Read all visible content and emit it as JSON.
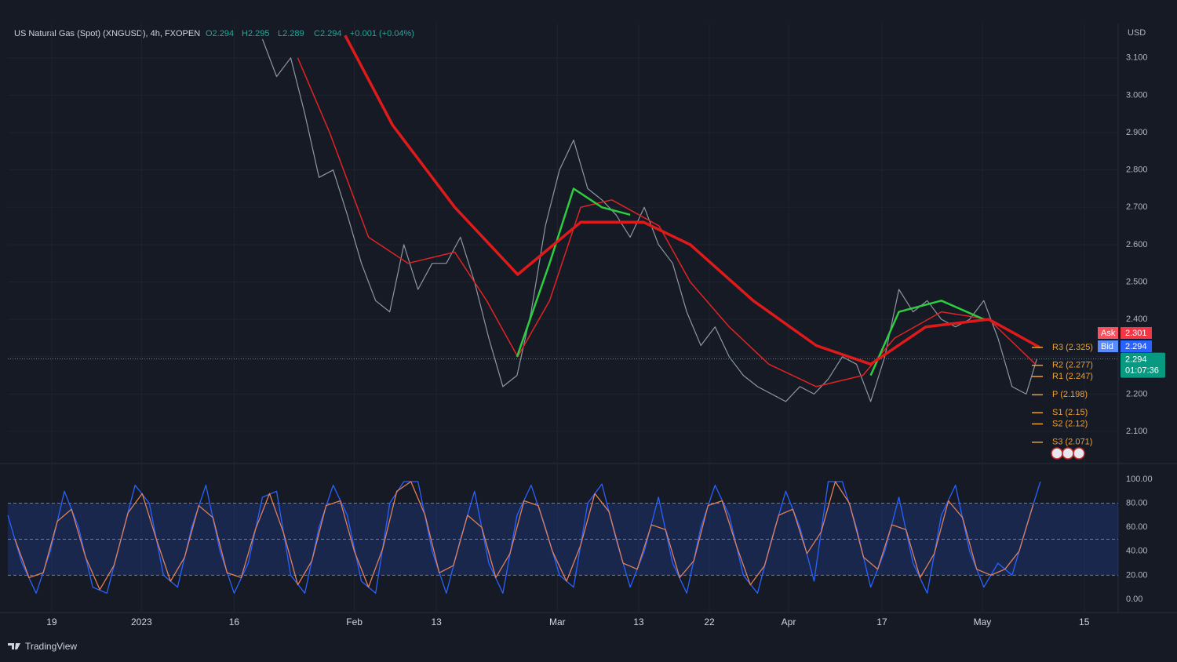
{
  "chart_data": [
    {
      "type": "line",
      "title": "US Natural Gas (Spot) (XNGUSD), 4h, FXOPEN",
      "ohlc": [
        "O2.294",
        "H2.295",
        "L2.289",
        "C2.294"
      ],
      "change": "+0.001 (+0.04%)",
      "currency": "USD",
      "xlim": [
        0,
        157
      ],
      "xticks": [
        {
          "value": 6.2,
          "label": "19"
        },
        {
          "value": 18.9,
          "label": "2023"
        },
        {
          "value": 32.0,
          "label": "16"
        },
        {
          "value": 49.0,
          "label": "Feb"
        },
        {
          "value": 60.6,
          "label": "13"
        },
        {
          "value": 77.7,
          "label": "Mar"
        },
        {
          "value": 89.2,
          "label": "13"
        },
        {
          "value": 99.2,
          "label": "22"
        },
        {
          "value": 110.4,
          "label": "Apr"
        },
        {
          "value": 123.6,
          "label": "17"
        },
        {
          "value": 137.8,
          "label": "May"
        },
        {
          "value": 152.2,
          "label": "15"
        }
      ],
      "ylim": [
        2.016,
        3.192
      ],
      "yticks": [
        {
          "value": 2.1,
          "label": "2.100"
        },
        {
          "value": 2.2,
          "label": "2.200"
        },
        {
          "value": 2.3,
          "label": "2.300"
        },
        {
          "value": 2.4,
          "label": "2.400"
        },
        {
          "value": 2.5,
          "label": "2.500"
        },
        {
          "value": 2.6,
          "label": "2.600"
        },
        {
          "value": 2.7,
          "label": "2.700"
        },
        {
          "value": 2.8,
          "label": "2.800"
        },
        {
          "value": 2.9,
          "label": "2.900"
        },
        {
          "value": 3.0,
          "label": "3.000"
        },
        {
          "value": 3.1,
          "label": "3.100"
        }
      ],
      "grid": true,
      "series": [
        {
          "color": "#8f96a3",
          "width": 1.2,
          "x": [
            36,
            38,
            40,
            42,
            44,
            46,
            48,
            50,
            52,
            54,
            56,
            58,
            60,
            62,
            64,
            66,
            68,
            70,
            72,
            74,
            76,
            78,
            80,
            82,
            84,
            86,
            88,
            90,
            92,
            94,
            96,
            98,
            100,
            102,
            104,
            106,
            108,
            110,
            112,
            114,
            116,
            118,
            120,
            122,
            124,
            126,
            128,
            130,
            132,
            134,
            136,
            138,
            140,
            142,
            144,
            145.5
          ],
          "values": [
            3.15,
            3.05,
            3.1,
            2.95,
            2.78,
            2.8,
            2.68,
            2.55,
            2.45,
            2.42,
            2.6,
            2.48,
            2.55,
            2.55,
            2.62,
            2.5,
            2.35,
            2.22,
            2.25,
            2.42,
            2.65,
            2.8,
            2.88,
            2.75,
            2.72,
            2.68,
            2.62,
            2.7,
            2.6,
            2.55,
            2.42,
            2.33,
            2.38,
            2.3,
            2.25,
            2.22,
            2.2,
            2.18,
            2.22,
            2.2,
            2.24,
            2.3,
            2.28,
            2.18,
            2.3,
            2.48,
            2.42,
            2.45,
            2.4,
            2.38,
            2.4,
            2.45,
            2.35,
            2.22,
            2.2,
            2.294
          ]
        },
        {
          "color": "#e02424",
          "width": 1.5,
          "x": [
            41,
            45.5,
            51,
            56.6,
            63.2,
            67.7,
            72.1,
            76.6,
            81,
            85.4,
            92.1,
            96.5,
            102,
            107.6,
            114.3,
            120.9,
            125.4,
            132,
            138.7,
            145.3
          ],
          "values": [
            3.1,
            2.9,
            2.62,
            2.55,
            2.58,
            2.45,
            2.3,
            2.45,
            2.7,
            2.72,
            2.65,
            2.5,
            2.38,
            2.28,
            2.22,
            2.25,
            2.35,
            2.42,
            2.4,
            2.28
          ]
        },
        {
          "color": "#2ecc40",
          "width": 2.5,
          "x": [
            72,
            76.6,
            80,
            84,
            88
          ],
          "values": [
            2.3,
            2.55,
            2.75,
            2.7,
            2.68
          ]
        },
        {
          "color": "#2ecc40",
          "width": 2.5,
          "x": [
            122,
            126,
            132,
            138
          ],
          "values": [
            2.25,
            2.42,
            2.45,
            2.4
          ]
        },
        {
          "color": "#e01a1a",
          "width": 3.5,
          "x": [
            47.7,
            54.4,
            63.2,
            72.1,
            81,
            89.9,
            96.5,
            105.4,
            114.3,
            122,
            129.8,
            138.7,
            145.9
          ],
          "values": [
            3.16,
            2.92,
            2.7,
            2.52,
            2.66,
            2.66,
            2.6,
            2.45,
            2.33,
            2.28,
            2.38,
            2.4,
            2.325
          ]
        }
      ],
      "pivots": [
        {
          "label": "R3 (2.325)",
          "value": 2.325
        },
        {
          "label": "R2 (2.277)",
          "value": 2.277
        },
        {
          "label": "R1 (2.247)",
          "value": 2.247
        },
        {
          "label": "P (2.198)",
          "value": 2.198
        },
        {
          "label": "S1 (2.15)",
          "value": 2.15
        },
        {
          "label": "S2 (2.12)",
          "value": 2.12
        },
        {
          "label": "S3 (2.071)",
          "value": 2.071
        }
      ],
      "last_price": 2.294,
      "countdown": "01:07:36",
      "ask": {
        "label": "Ask",
        "price": "2.301"
      },
      "bid": {
        "label": "Bid",
        "price": "2.294"
      }
    },
    {
      "type": "line",
      "xlim": [
        0,
        157
      ],
      "ylim": [
        -10.5,
        112.4
      ],
      "yticks": [
        {
          "value": 0,
          "label": "0.00"
        },
        {
          "value": 20,
          "label": "20.00"
        },
        {
          "value": 40,
          "label": "40.00"
        },
        {
          "value": 60,
          "label": "60.00"
        },
        {
          "value": 80,
          "label": "80.00"
        },
        {
          "value": 100,
          "label": "100.00"
        }
      ],
      "band": [
        20,
        80
      ],
      "band_lines": [
        20,
        50,
        80
      ],
      "series": [
        {
          "color": "#2962ff",
          "width": 1.3,
          "x": [
            0,
            2,
            4,
            6,
            8,
            10,
            12,
            14,
            16,
            18,
            20,
            22,
            24,
            26,
            28,
            30,
            32,
            34,
            36,
            38,
            40,
            42,
            44,
            46,
            48,
            50,
            52,
            54,
            56,
            58,
            60,
            62,
            64,
            66,
            68,
            70,
            72,
            74,
            76,
            78,
            80,
            82,
            84,
            86,
            88,
            90,
            92,
            94,
            96,
            98,
            100,
            102,
            104,
            106,
            108,
            110,
            112,
            114,
            116,
            118,
            120,
            122,
            124,
            126,
            128,
            130,
            132,
            134,
            136,
            138,
            140,
            142,
            144,
            146
          ],
          "values": [
            70,
            30,
            5,
            40,
            90,
            60,
            10,
            5,
            50,
            95,
            80,
            20,
            10,
            60,
            95,
            40,
            5,
            30,
            85,
            90,
            20,
            5,
            60,
            95,
            70,
            15,
            5,
            80,
            98,
            98,
            40,
            5,
            50,
            90,
            30,
            5,
            70,
            95,
            60,
            20,
            10,
            80,
            96,
            50,
            10,
            40,
            85,
            30,
            5,
            60,
            95,
            70,
            20,
            5,
            50,
            90,
            60,
            15,
            98,
            98,
            60,
            10,
            40,
            85,
            30,
            5,
            70,
            95,
            40,
            10,
            30,
            20,
            60,
            98
          ]
        },
        {
          "color": "#e0805a",
          "width": 1.3,
          "x": [
            1,
            3,
            5,
            7,
            9,
            11,
            13,
            15,
            17,
            19,
            21,
            23,
            25,
            27,
            29,
            31,
            33,
            35,
            37,
            39,
            41,
            43,
            45,
            47,
            49,
            51,
            53,
            55,
            57,
            59,
            61,
            63,
            65,
            67,
            69,
            71,
            73,
            75,
            77,
            79,
            81,
            83,
            85,
            87,
            89,
            91,
            93,
            95,
            97,
            99,
            101,
            103,
            105,
            107,
            109,
            111,
            113,
            115,
            117,
            119,
            121,
            123,
            125,
            127,
            129,
            131,
            133,
            135,
            137,
            139,
            141,
            143,
            145
          ],
          "values": [
            50,
            18,
            22,
            65,
            75,
            35,
            8,
            28,
            72,
            88,
            50,
            15,
            35,
            78,
            68,
            22,
            18,
            58,
            88,
            55,
            12,
            32,
            78,
            82,
            40,
            10,
            42,
            90,
            98,
            70,
            22,
            28,
            70,
            60,
            18,
            38,
            82,
            78,
            40,
            15,
            45,
            88,
            73,
            30,
            25,
            62,
            58,
            18,
            32,
            78,
            82,
            45,
            12,
            28,
            70,
            75,
            38,
            56,
            98,
            80,
            35,
            25,
            62,
            58,
            18,
            38,
            82,
            68,
            25,
            20,
            25,
            40,
            79
          ]
        }
      ]
    }
  ],
  "brand": "TradingView"
}
